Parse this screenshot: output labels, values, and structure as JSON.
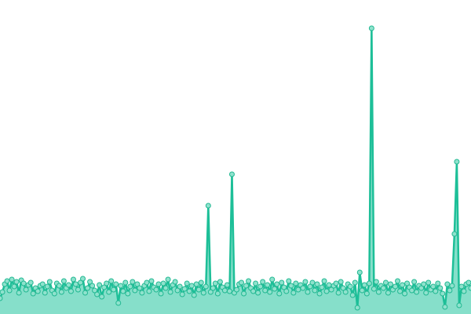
{
  "chart_data": {
    "type": "area",
    "title": "",
    "xlabel": "",
    "ylabel": "",
    "ylim": [
      0,
      400
    ],
    "grid": false,
    "colors": {
      "line": "#1dbf98",
      "fill": "#86dfca",
      "point_fill": "#8fe2cd",
      "point_stroke": "#22b892"
    },
    "values": [
      20,
      28,
      38,
      42,
      30,
      44,
      35,
      41,
      27,
      43,
      39,
      31,
      37,
      40,
      26,
      33,
      29,
      36,
      38,
      27,
      35,
      41,
      30,
      26,
      39,
      36,
      28,
      42,
      33,
      37,
      29,
      44,
      38,
      31,
      40,
      45,
      27,
      33,
      41,
      36,
      30,
      25,
      37,
      22,
      34,
      39,
      28,
      42,
      31,
      38,
      14,
      36,
      29,
      40,
      26,
      35,
      41,
      30,
      38,
      33,
      27,
      36,
      40,
      29,
      42,
      34,
      31,
      38,
      26,
      39,
      33,
      44,
      28,
      37,
      41,
      30,
      35,
      25,
      32,
      39,
      29,
      36,
      24,
      38,
      31,
      40,
      27,
      35,
      138,
      28,
      33,
      39,
      26,
      41,
      34,
      30,
      37,
      29,
      178,
      27,
      31,
      38,
      40,
      26,
      36,
      42,
      33,
      29,
      39,
      27,
      35,
      41,
      30,
      37,
      28,
      44,
      32,
      38,
      26,
      40,
      34,
      29,
      42,
      36,
      27,
      39,
      31,
      37,
      33,
      41,
      28,
      35,
      40,
      30,
      38,
      26,
      34,
      42,
      29,
      37,
      31,
      36,
      39,
      27,
      41,
      33,
      28,
      38,
      35,
      24,
      40,
      8,
      53,
      30,
      37,
      26,
      39,
      364,
      32,
      41,
      28,
      36,
      33,
      40,
      27,
      38,
      31,
      35,
      42,
      29,
      37,
      26,
      39,
      34,
      30,
      41,
      28,
      36,
      33,
      38,
      27,
      40,
      31,
      35,
      29,
      39,
      33,
      26,
      9,
      38,
      30,
      36,
      102,
      194,
      11,
      35,
      29,
      38,
      40,
      33
    ]
  }
}
